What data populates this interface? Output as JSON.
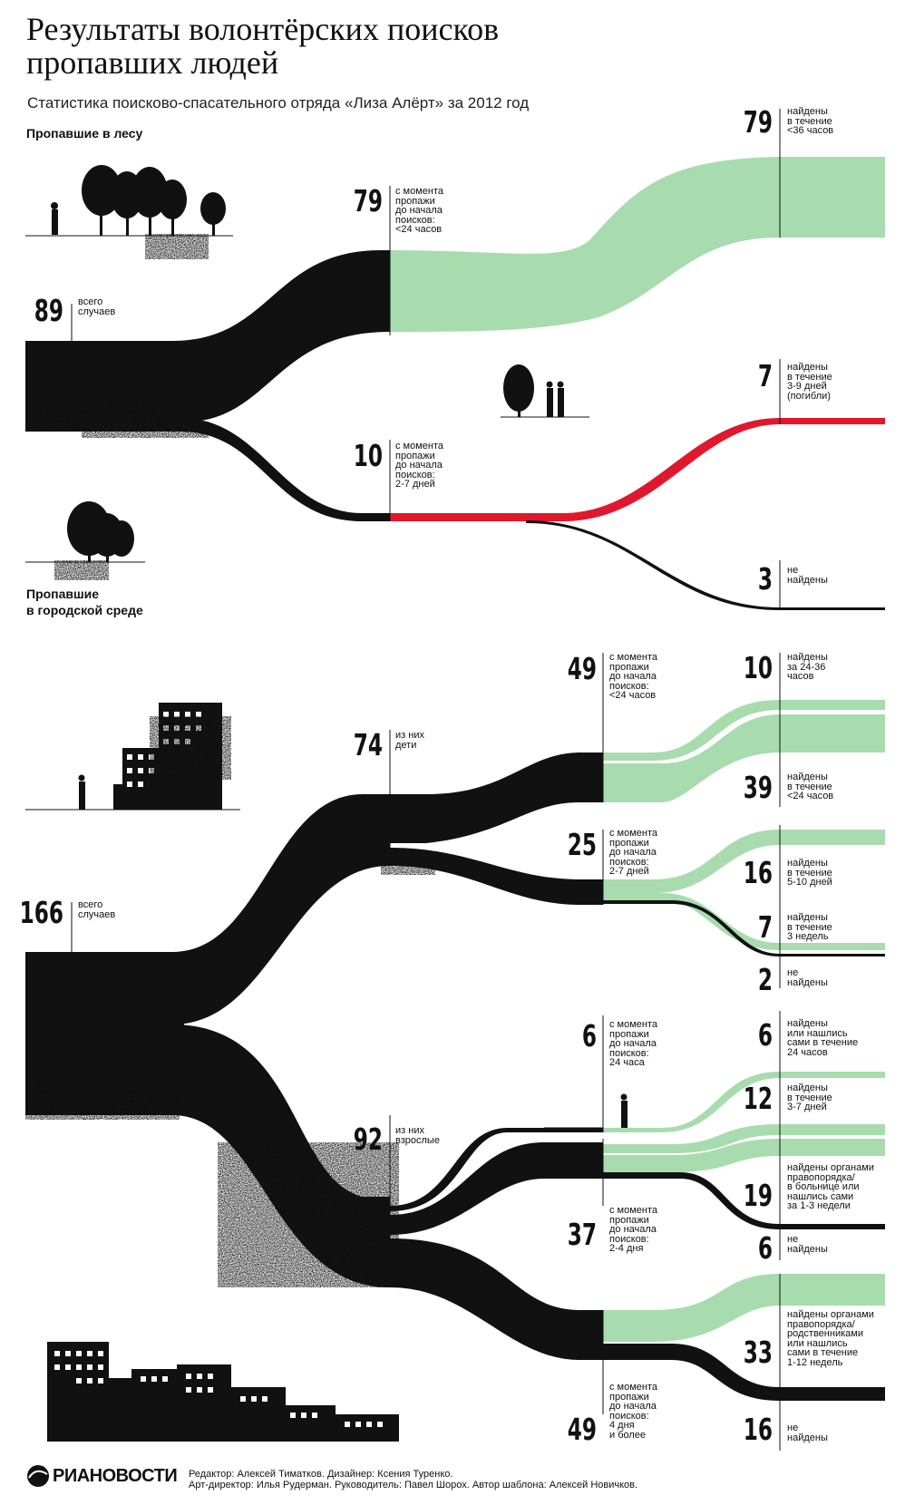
{
  "title": "Результаты волонтёрских поисков пропавших людей",
  "subtitle": "Статистика поисково-спасательного отряда «Лиза Алёрт» за 2012 год",
  "forest": {
    "heading": "Пропавшие в лесу",
    "total": {
      "value": "89",
      "label": "всего\nслучаев"
    },
    "start_24h": {
      "value": "79",
      "label": "с момента\nпропажи\nдо начала\nпоисков:\n<24 часов"
    },
    "start_2_7d": {
      "value": "10",
      "label": "с момента\nпропажи\nдо начала\nпоисков:\n2-7 дней"
    },
    "found_36h": {
      "value": "79",
      "label": "найдены\nв течение\n<36 часов"
    },
    "found_dead": {
      "value": "7",
      "label": "найдены\nв течение\n3-9 дней\n(погибли)"
    },
    "not_found": {
      "value": "3",
      "label": "не\nнайдены"
    }
  },
  "urban": {
    "heading": "Пропавшие\nв городской среде",
    "total": {
      "value": "166",
      "label": "всего\nслучаев"
    },
    "children": {
      "value": "74",
      "label": "из них\nдети"
    },
    "adults": {
      "value": "92",
      "label": "из них\nвзрослые"
    },
    "c_start_24h": {
      "value": "49",
      "label": "с момента\nпропажи\nдо начала\nпоисков:\n<24 часов"
    },
    "c_start_2_7d": {
      "value": "25",
      "label": "с момента\nпропажи\nдо начала\nпоисков:\n2-7 дней"
    },
    "c_found_24_36h": {
      "value": "10",
      "label": "найдены\nза 24-36\nчасов"
    },
    "c_found_24h": {
      "value": "39",
      "label": "найдены\nв течение\n<24 часов"
    },
    "c_found_5_10d": {
      "value": "16",
      "label": "найдены\nв течение\n5-10 дней"
    },
    "c_found_3w": {
      "value": "7",
      "label": "найдены\nв течение\n3 недель"
    },
    "c_not_found": {
      "value": "2",
      "label": "не\nнайдены"
    },
    "a_start_24h": {
      "value": "6",
      "label": "с момента\nпропажи\nдо начала\nпоисков:\n24 часа"
    },
    "a_start_2_4d": {
      "value": "37",
      "label": "с момента\nпропажи\nдо начала\nпоисков:\n2-4 дня"
    },
    "a_start_4d_plus": {
      "value": "49",
      "label": "с момента\nпропажи\nдо начала\nпоисков:\n4 дня\nи более"
    },
    "a_found_24h": {
      "value": "6",
      "label": "найдены\nили нашлись\nсами в течение\n24 часов"
    },
    "a_found_3_7d": {
      "value": "12",
      "label": "найдены\nв течение\n3-7 дней"
    },
    "a_found_1_3w": {
      "value": "19",
      "label": "найдены органами\nправопорядка/\nв больнице или\nнашлись сами\nза 1-3 недели"
    },
    "a_not_found_1": {
      "value": "6",
      "label": "не\nнайдены"
    },
    "a_found_1_12w": {
      "value": "33",
      "label": "найдены органами\nправопорядка/\nродственниками\nили нашлись\nсами в течение\n1-12 недель"
    },
    "a_not_found_2": {
      "value": "16",
      "label": "не\nнайдены"
    }
  },
  "credits": {
    "logo": "РИАНОВОСТИ",
    "text": "Редактор: Алексей Тиматков. Дизайнер: Ксения Туренко.\nАрт-директор: Илья Рудерман. Руководитель: Павел Шорох. Автор шаблона: Алексей Новичков."
  },
  "colors": {
    "flow": "#111111",
    "found": "#a8dcae",
    "dead": "#e0182d"
  }
}
